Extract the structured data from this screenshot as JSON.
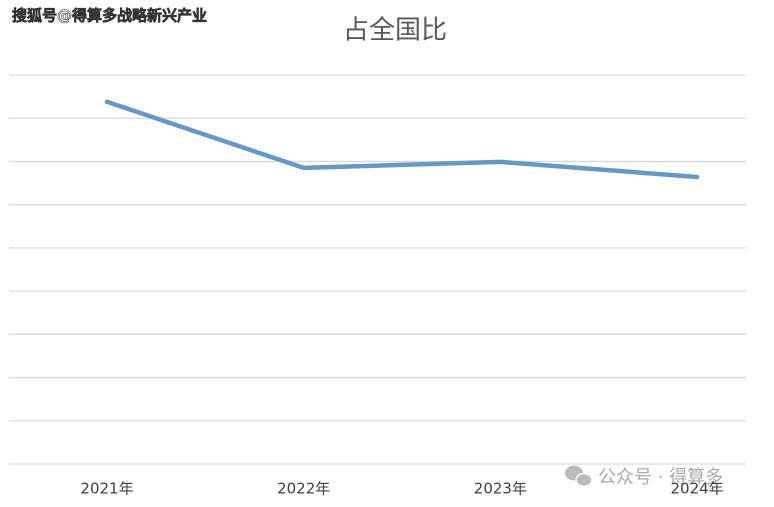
{
  "chart_data": {
    "type": "line",
    "title": "占全国比",
    "categories": [
      "2021年",
      "2022年",
      "2023年",
      "2024年"
    ],
    "series": [
      {
        "name": "占全国比",
        "color": "#6399c6",
        "values": [
          8.38,
          6.85,
          6.99,
          6.64
        ]
      }
    ],
    "ylim": [
      0,
      9
    ],
    "yticks": [
      0,
      1,
      2,
      3,
      4,
      5,
      6,
      7,
      8,
      9
    ],
    "grid": true,
    "y_tick_labels": false,
    "watermarks": [
      "搜狐号@得算多战略新兴产业",
      "公众号 · 得算多"
    ]
  }
}
